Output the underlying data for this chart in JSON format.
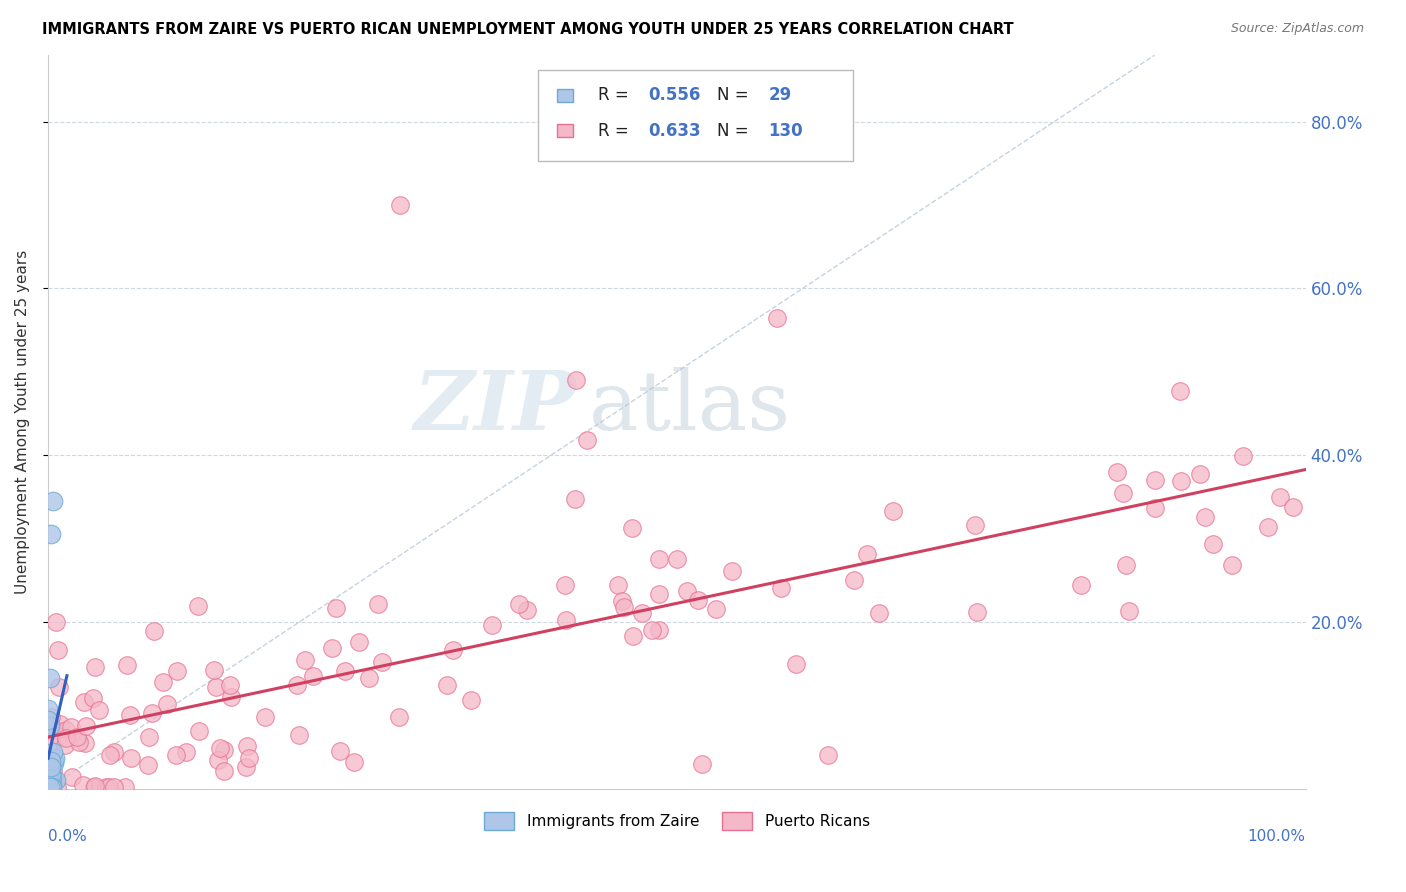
{
  "title": "IMMIGRANTS FROM ZAIRE VS PUERTO RICAN UNEMPLOYMENT AMONG YOUTH UNDER 25 YEARS CORRELATION CHART",
  "source": "Source: ZipAtlas.com",
  "ylabel": "Unemployment Among Youth under 25 years",
  "ytick_values": [
    0.2,
    0.4,
    0.6,
    0.8
  ],
  "ytick_labels": [
    "20.0%",
    "40.0%",
    "60.0%",
    "80.0%"
  ],
  "xlim": [
    0,
    1.0
  ],
  "ylim": [
    0,
    0.88
  ],
  "color_zaire_fill": "#aec6e8",
  "color_zaire_edge": "#6aaad4",
  "color_pr_fill": "#f4b8c8",
  "color_pr_edge": "#e87090",
  "color_trendline_zaire": "#3060c0",
  "color_trendline_pr": "#d04060",
  "color_diagonal": "#b8c8d8",
  "watermark_zip": "ZIP",
  "watermark_atlas": "atlas",
  "bg_color": "#ffffff",
  "grid_color": "#d0d8e0",
  "legend_color": "#4472c4",
  "title_fontsize": 10.5,
  "source_fontsize": 9,
  "axis_label_color": "#4472c4"
}
